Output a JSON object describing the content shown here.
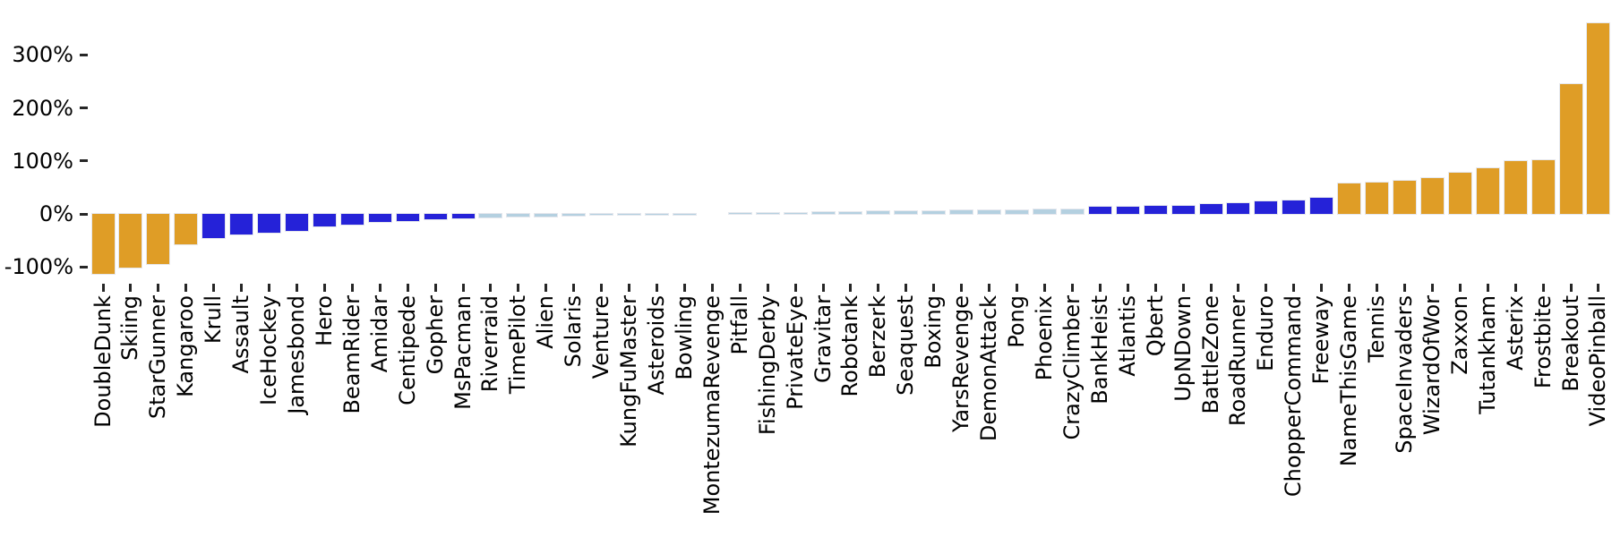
{
  "chart_data": {
    "type": "bar",
    "title": "",
    "xlabel": "",
    "ylabel": "",
    "grid": false,
    "legend": null,
    "ylim": [
      -137,
      383
    ],
    "ytick_values": [
      300,
      200,
      100,
      0,
      -100
    ],
    "ytick_labels": [
      "300%",
      "200%",
      "100%",
      "0%",
      "-100%"
    ],
    "palette": {
      "orange": "#DF9D26",
      "blue": "#2522D8",
      "lightblue": "#B4D0E0"
    },
    "categories": [
      "DoubleDunk",
      "Skiing",
      "StarGunner",
      "Kangaroo",
      "Krull",
      "Assault",
      "IceHockey",
      "Jamesbond",
      "Hero",
      "BeamRider",
      "Amidar",
      "Centipede",
      "Gopher",
      "MsPacman",
      "Riverraid",
      "TimePilot",
      "Alien",
      "Solaris",
      "Venture",
      "KungFuMaster",
      "Asteroids",
      "Bowling",
      "MontezumaRevenge",
      "Pitfall",
      "FishingDerby",
      "PrivateEye",
      "Gravitar",
      "Robotank",
      "Berzerk",
      "Seaquest",
      "Boxing",
      "YarsRevenge",
      "DemonAttack",
      "Pong",
      "Phoenix",
      "CrazyClimber",
      "BankHeist",
      "Atlantis",
      "Qbert",
      "UpNDown",
      "BattleZone",
      "RoadRunner",
      "Enduro",
      "ChopperCommand",
      "Freeway",
      "NameThisGame",
      "Tennis",
      "SpaceInvaders",
      "WizardOfWor",
      "Zaxxon",
      "Tutankham",
      "Asterix",
      "Frostbite",
      "Breakout",
      "VideoPinball"
    ],
    "values": [
      -113,
      -102,
      -94,
      -57,
      -46,
      -39,
      -35,
      -32,
      -24,
      -20,
      -15,
      -13,
      -10,
      -8,
      -6.5,
      -5.5,
      -4.5,
      -3.5,
      -2.5,
      -2,
      -1.2,
      -0.6,
      0,
      0.4,
      1.5,
      2.5,
      3,
      3.5,
      4.5,
      5,
      5.5,
      6,
      6.5,
      7,
      8.5,
      9,
      13,
      14,
      15,
      16,
      19,
      20,
      23,
      26,
      30,
      58,
      59,
      62,
      67,
      78,
      86,
      100,
      102,
      245,
      359
    ],
    "bar_color_keys": [
      "orange",
      "orange",
      "orange",
      "orange",
      "blue",
      "blue",
      "blue",
      "blue",
      "blue",
      "blue",
      "blue",
      "blue",
      "blue",
      "blue",
      "lightblue",
      "lightblue",
      "lightblue",
      "lightblue",
      "lightblue",
      "lightblue",
      "lightblue",
      "lightblue",
      "lightblue",
      "lightblue",
      "lightblue",
      "lightblue",
      "lightblue",
      "lightblue",
      "lightblue",
      "lightblue",
      "lightblue",
      "lightblue",
      "lightblue",
      "lightblue",
      "lightblue",
      "lightblue",
      "blue",
      "blue",
      "blue",
      "blue",
      "blue",
      "blue",
      "blue",
      "blue",
      "blue",
      "orange",
      "orange",
      "orange",
      "orange",
      "orange",
      "orange",
      "orange",
      "orange",
      "orange",
      "orange"
    ],
    "value_unit": "%"
  }
}
